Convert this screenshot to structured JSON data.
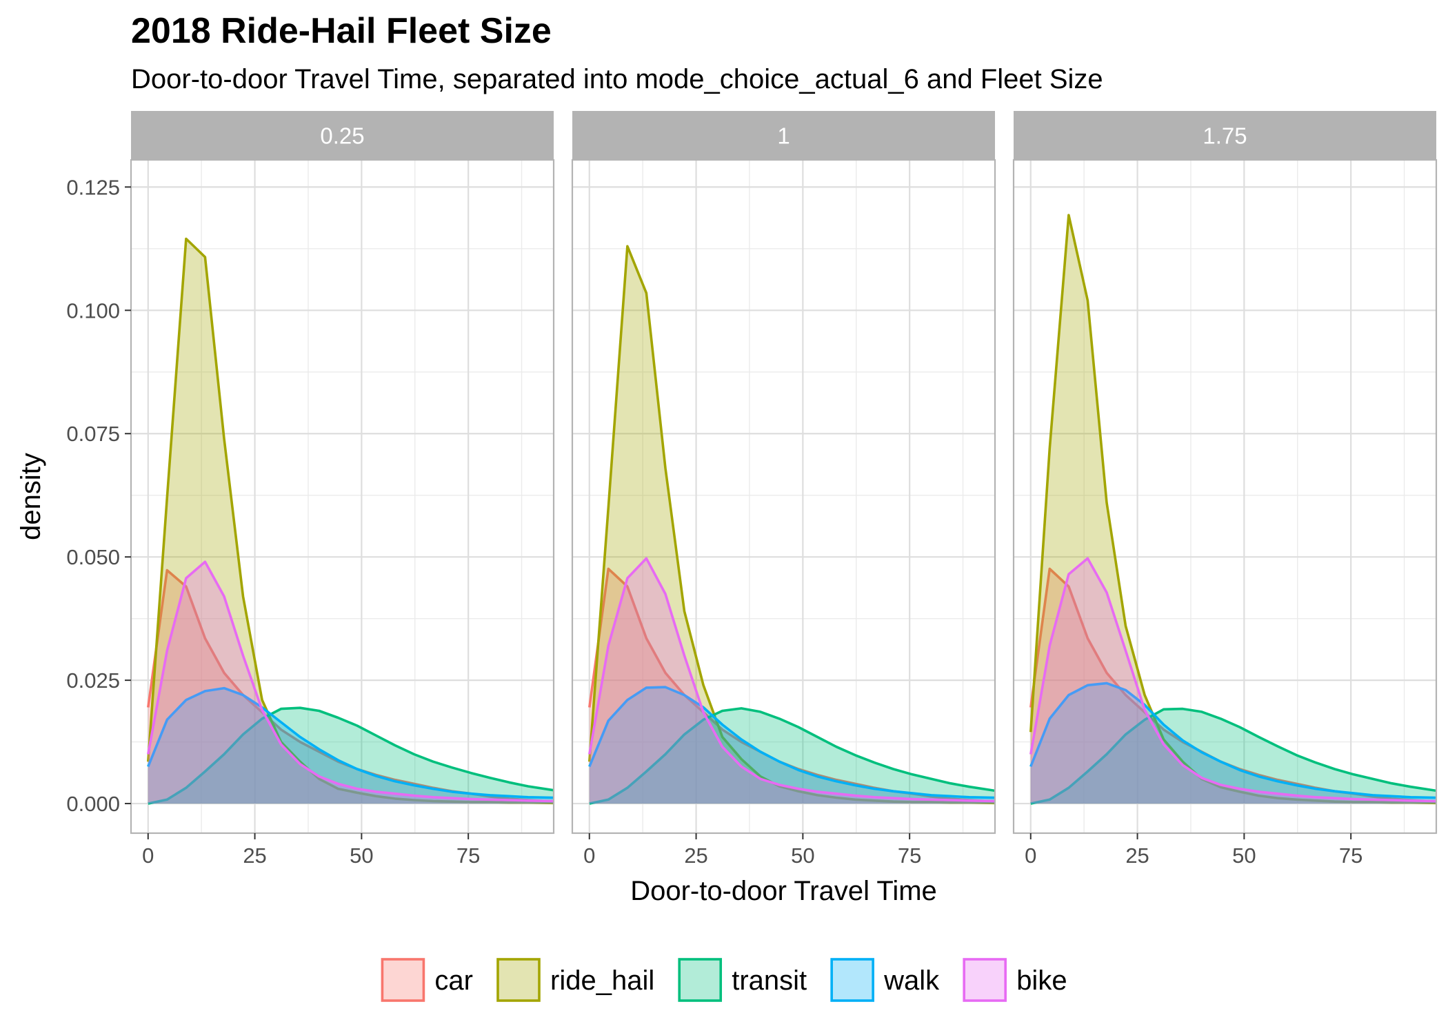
{
  "title": "2018 Ride-Hail Fleet Size",
  "subtitle": "Door-to-door Travel Time, separated into mode_choice_actual_6 and Fleet Size",
  "chart_data": {
    "type": "area",
    "facets": [
      "0.25",
      "1",
      "1.75"
    ],
    "xlabel": "Door-to-door Travel Time",
    "ylabel": "density",
    "xlim": [
      -4,
      95
    ],
    "ylim": [
      -0.006,
      0.1305
    ],
    "x_ticks": [
      0,
      25,
      50,
      75
    ],
    "y_ticks": [
      0,
      0.025,
      0.05,
      0.075,
      0.1,
      0.125
    ],
    "y_tick_labels": [
      "0.000",
      "0.025",
      "0.050",
      "0.075",
      "0.100",
      "0.125"
    ],
    "grid": true,
    "legend_position": "bottom",
    "x": [
      0,
      4.45,
      8.9,
      13.35,
      17.8,
      22.25,
      26.7,
      31.15,
      35.6,
      40.05,
      44.5,
      48.95,
      53.4,
      57.85,
      62.3,
      66.75,
      71.2,
      75.65,
      80.1,
      84.55,
      89.0,
      95.0
    ],
    "series": [
      {
        "name": "car",
        "color": "#F8766D",
        "panels": [
          [
            0.0195,
            0.0473,
            0.044,
            0.0335,
            0.0265,
            0.022,
            0.0185,
            0.015,
            0.0125,
            0.0105,
            0.0085,
            0.007,
            0.0058,
            0.0048,
            0.004,
            0.0032,
            0.0025,
            0.002,
            0.0014,
            0.001,
            0.0007,
            0.0004
          ],
          [
            0.0195,
            0.0476,
            0.044,
            0.0335,
            0.0265,
            0.022,
            0.0185,
            0.015,
            0.0125,
            0.0105,
            0.0085,
            0.007,
            0.0058,
            0.0048,
            0.004,
            0.0032,
            0.0025,
            0.002,
            0.0014,
            0.001,
            0.0007,
            0.0004
          ],
          [
            0.0195,
            0.0476,
            0.044,
            0.0335,
            0.0265,
            0.022,
            0.0185,
            0.015,
            0.0125,
            0.0105,
            0.0085,
            0.007,
            0.0058,
            0.0048,
            0.004,
            0.0032,
            0.0025,
            0.002,
            0.0014,
            0.001,
            0.0007,
            0.0004
          ]
        ]
      },
      {
        "name": "ride_hail",
        "color": "#A3A500",
        "panels": [
          [
            0.0085,
            0.062,
            0.1145,
            0.1108,
            0.074,
            0.042,
            0.021,
            0.0125,
            0.0085,
            0.005,
            0.003,
            0.0022,
            0.0015,
            0.001,
            0.0007,
            0.0005,
            0.0004,
            0.0003,
            0.0003,
            0.0002,
            0.0002,
            0.0001
          ],
          [
            0.0085,
            0.06,
            0.113,
            0.1035,
            0.068,
            0.039,
            0.024,
            0.0135,
            0.009,
            0.0055,
            0.0035,
            0.0025,
            0.0017,
            0.0012,
            0.0008,
            0.0006,
            0.0004,
            0.0003,
            0.0003,
            0.0002,
            0.0002,
            0.0001
          ],
          [
            0.0145,
            0.072,
            0.1193,
            0.102,
            0.061,
            0.036,
            0.022,
            0.013,
            0.0085,
            0.005,
            0.0033,
            0.0024,
            0.0016,
            0.0011,
            0.0008,
            0.0006,
            0.0004,
            0.0003,
            0.0003,
            0.0002,
            0.0002,
            0.0001
          ]
        ]
      },
      {
        "name": "transit",
        "color": "#00BF7D",
        "panels": [
          [
            0.0,
            0.0008,
            0.0032,
            0.0065,
            0.01,
            0.014,
            0.0172,
            0.0192,
            0.0194,
            0.0188,
            0.0174,
            0.0158,
            0.0138,
            0.0118,
            0.01,
            0.0085,
            0.0073,
            0.0062,
            0.0052,
            0.0043,
            0.0035,
            0.0027
          ],
          [
            0.0,
            0.0008,
            0.0032,
            0.0065,
            0.01,
            0.014,
            0.017,
            0.0188,
            0.0193,
            0.0186,
            0.0172,
            0.0155,
            0.0135,
            0.0115,
            0.0098,
            0.0083,
            0.007,
            0.0059,
            0.005,
            0.0041,
            0.0034,
            0.0026
          ],
          [
            0.0,
            0.0008,
            0.0032,
            0.0065,
            0.01,
            0.014,
            0.017,
            0.0191,
            0.0192,
            0.0186,
            0.0172,
            0.0155,
            0.0135,
            0.0116,
            0.0098,
            0.0083,
            0.007,
            0.0059,
            0.005,
            0.0041,
            0.0034,
            0.0026
          ]
        ]
      },
      {
        "name": "walk",
        "color": "#00B0F6",
        "panels": [
          [
            0.0075,
            0.017,
            0.021,
            0.0228,
            0.0234,
            0.022,
            0.0195,
            0.0165,
            0.0135,
            0.011,
            0.0088,
            0.007,
            0.0056,
            0.0045,
            0.0037,
            0.003,
            0.0024,
            0.002,
            0.0017,
            0.0015,
            0.0013,
            0.0012
          ],
          [
            0.0075,
            0.0168,
            0.021,
            0.0235,
            0.0236,
            0.022,
            0.0195,
            0.016,
            0.013,
            0.0105,
            0.0085,
            0.0068,
            0.0055,
            0.0045,
            0.0037,
            0.003,
            0.0025,
            0.0021,
            0.0017,
            0.0015,
            0.0013,
            0.0012
          ],
          [
            0.0075,
            0.0172,
            0.022,
            0.024,
            0.0244,
            0.023,
            0.02,
            0.016,
            0.0128,
            0.0104,
            0.0085,
            0.0068,
            0.0055,
            0.0045,
            0.0037,
            0.003,
            0.0025,
            0.0021,
            0.0017,
            0.0015,
            0.0013,
            0.0012
          ]
        ]
      },
      {
        "name": "bike",
        "color": "#E76BF3",
        "panels": [
          [
            0.01,
            0.031,
            0.0457,
            0.049,
            0.042,
            0.03,
            0.019,
            0.012,
            0.008,
            0.0055,
            0.004,
            0.003,
            0.0024,
            0.002,
            0.0016,
            0.0013,
            0.0011,
            0.0009,
            0.0008,
            0.0007,
            0.0006,
            0.0005
          ],
          [
            0.01,
            0.032,
            0.0457,
            0.0497,
            0.0425,
            0.03,
            0.0185,
            0.0115,
            0.0075,
            0.005,
            0.0038,
            0.003,
            0.0024,
            0.002,
            0.0016,
            0.0013,
            0.0011,
            0.0009,
            0.0008,
            0.0007,
            0.0006,
            0.0005
          ],
          [
            0.01,
            0.032,
            0.0465,
            0.0497,
            0.0428,
            0.031,
            0.019,
            0.012,
            0.0078,
            0.0052,
            0.0038,
            0.003,
            0.0024,
            0.002,
            0.0016,
            0.0013,
            0.0011,
            0.0009,
            0.0008,
            0.0007,
            0.0006,
            0.0005
          ]
        ]
      }
    ]
  }
}
